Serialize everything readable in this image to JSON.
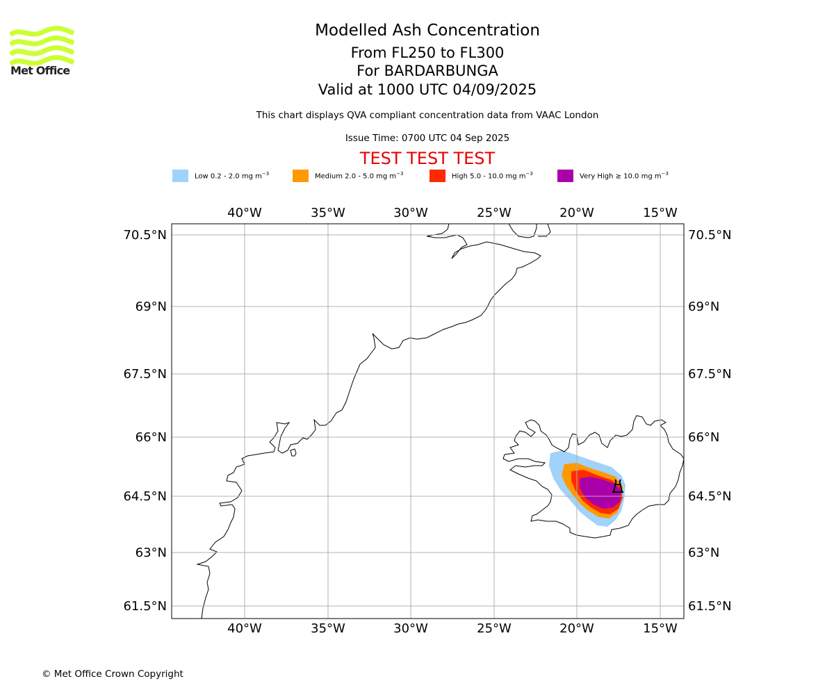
{
  "brand": {
    "logo_text": "Met Office",
    "logo_color": "#ccff33"
  },
  "header": {
    "title": "Modelled Ash Concentration",
    "levels": "From FL250 to FL300",
    "volcano": "For BARDARBUNGA",
    "valid": "Valid at 1000 UTC 04/09/2025",
    "description": "This chart displays QVA compliant concentration data from VAAC London",
    "issue_time": "Issue Time: 0700 UTC 04 Sep 2025",
    "test_banner": "TEST TEST TEST"
  },
  "legend": [
    {
      "label": "Low 0.2 - 2.0 mg m",
      "unit_exp": "−3",
      "color": "#a0d2fa"
    },
    {
      "label": "Medium 2.0 - 5.0 mg m",
      "unit_exp": "−3",
      "color": "#ff9900"
    },
    {
      "label": "High 5.0 - 10.0 mg m",
      "unit_exp": "−3",
      "color": "#ff2a00"
    },
    {
      "label": "Very High ≥ 10.0 mg m",
      "unit_exp": "−3",
      "color": "#aa00aa"
    }
  ],
  "map": {
    "lon_ticks": [
      "40°W",
      "35°W",
      "30°W",
      "25°W",
      "20°W",
      "15°W"
    ],
    "lat_ticks": [
      "70.5°N",
      "69°N",
      "67.5°N",
      "66°N",
      "64.5°N",
      "63°N",
      "61.5°N"
    ],
    "grid_color": "#b0b0b0",
    "volcano_marker": "volcano-icon"
  },
  "footer": {
    "copyright": "© Met Office Crown Copyright"
  }
}
